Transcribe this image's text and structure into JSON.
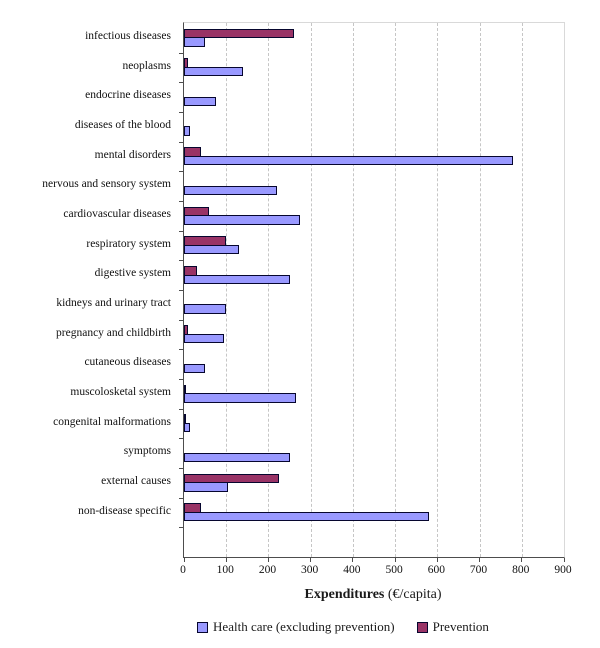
{
  "chart_data": {
    "type": "bar",
    "orientation": "horizontal",
    "title": "",
    "xlabel_bold": "Expenditures",
    "xlabel_unit": " (€/capita)",
    "xlim": [
      0,
      900
    ],
    "x_ticks": [
      0,
      100,
      200,
      300,
      400,
      500,
      600,
      700,
      800,
      900
    ],
    "grid": "vertical-dashed",
    "legend_position": "bottom",
    "categories": [
      "infectious diseases",
      "neoplasms",
      "endocrine diseases",
      "diseases of the blood",
      "mental disorders",
      "nervous and sensory system",
      "cardiovascular diseases",
      "respiratory system",
      "digestive system",
      "kidneys and urinary tract",
      "pregnancy and childbirth",
      "cutaneous diseases",
      "muscolosketal system",
      "congenital malformations",
      "symptoms",
      "external causes",
      "non-disease specific"
    ],
    "series": [
      {
        "name": "Health care (excluding prevention)",
        "color": "#9999FF",
        "values": [
          50,
          140,
          75,
          15,
          780,
          220,
          275,
          130,
          250,
          100,
          95,
          50,
          265,
          15,
          250,
          105,
          580
        ]
      },
      {
        "name": "Prevention",
        "color": "#993366",
        "values": [
          260,
          10,
          0,
          0,
          40,
          0,
          60,
          100,
          30,
          0,
          10,
          0,
          5,
          3,
          0,
          225,
          40
        ]
      }
    ]
  },
  "colors": {
    "healthcare_fill": "#9999FF",
    "prevention_fill": "#993366",
    "bar_border": "#06062E",
    "gridline": "#C6C6C6",
    "axis_line": "#4D4D4D",
    "background": "#FFFFFF"
  }
}
